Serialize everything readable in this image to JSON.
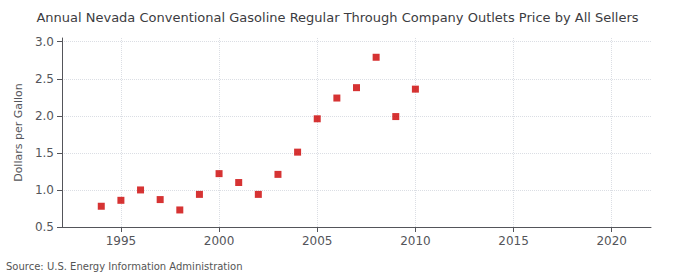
{
  "chart_data": {
    "type": "scatter",
    "title": "Annual Nevada Conventional Gasoline Regular Through Company Outlets Price by All Sellers",
    "ylabel": "Dollars per Gallon",
    "annotations": [
      "Source: U.S. Energy Information Administration"
    ],
    "x": [
      1994,
      1995,
      1996,
      1997,
      1998,
      1999,
      2000,
      2001,
      2002,
      2003,
      2004,
      2005,
      2006,
      2007,
      2008,
      2009,
      2010
    ],
    "values": [
      0.78,
      0.86,
      1.0,
      0.87,
      0.73,
      0.94,
      1.22,
      1.1,
      0.94,
      1.21,
      1.51,
      1.96,
      2.24,
      2.38,
      2.79,
      1.99,
      2.36
    ],
    "color": "#cc0000",
    "marker": "square",
    "xlim": [
      1992,
      2022
    ],
    "ylim": [
      0.5,
      3.05
    ],
    "xticks": [
      1995,
      2000,
      2005,
      2010,
      2015,
      2020
    ],
    "yticks": [
      0.5,
      {
        "value": 1.0,
        "label": "1.0"
      },
      1.5,
      {
        "value": 2.0,
        "label": "2.0"
      },
      2.5,
      {
        "value": 3.0,
        "label": "3.0"
      }
    ],
    "grid": true
  }
}
